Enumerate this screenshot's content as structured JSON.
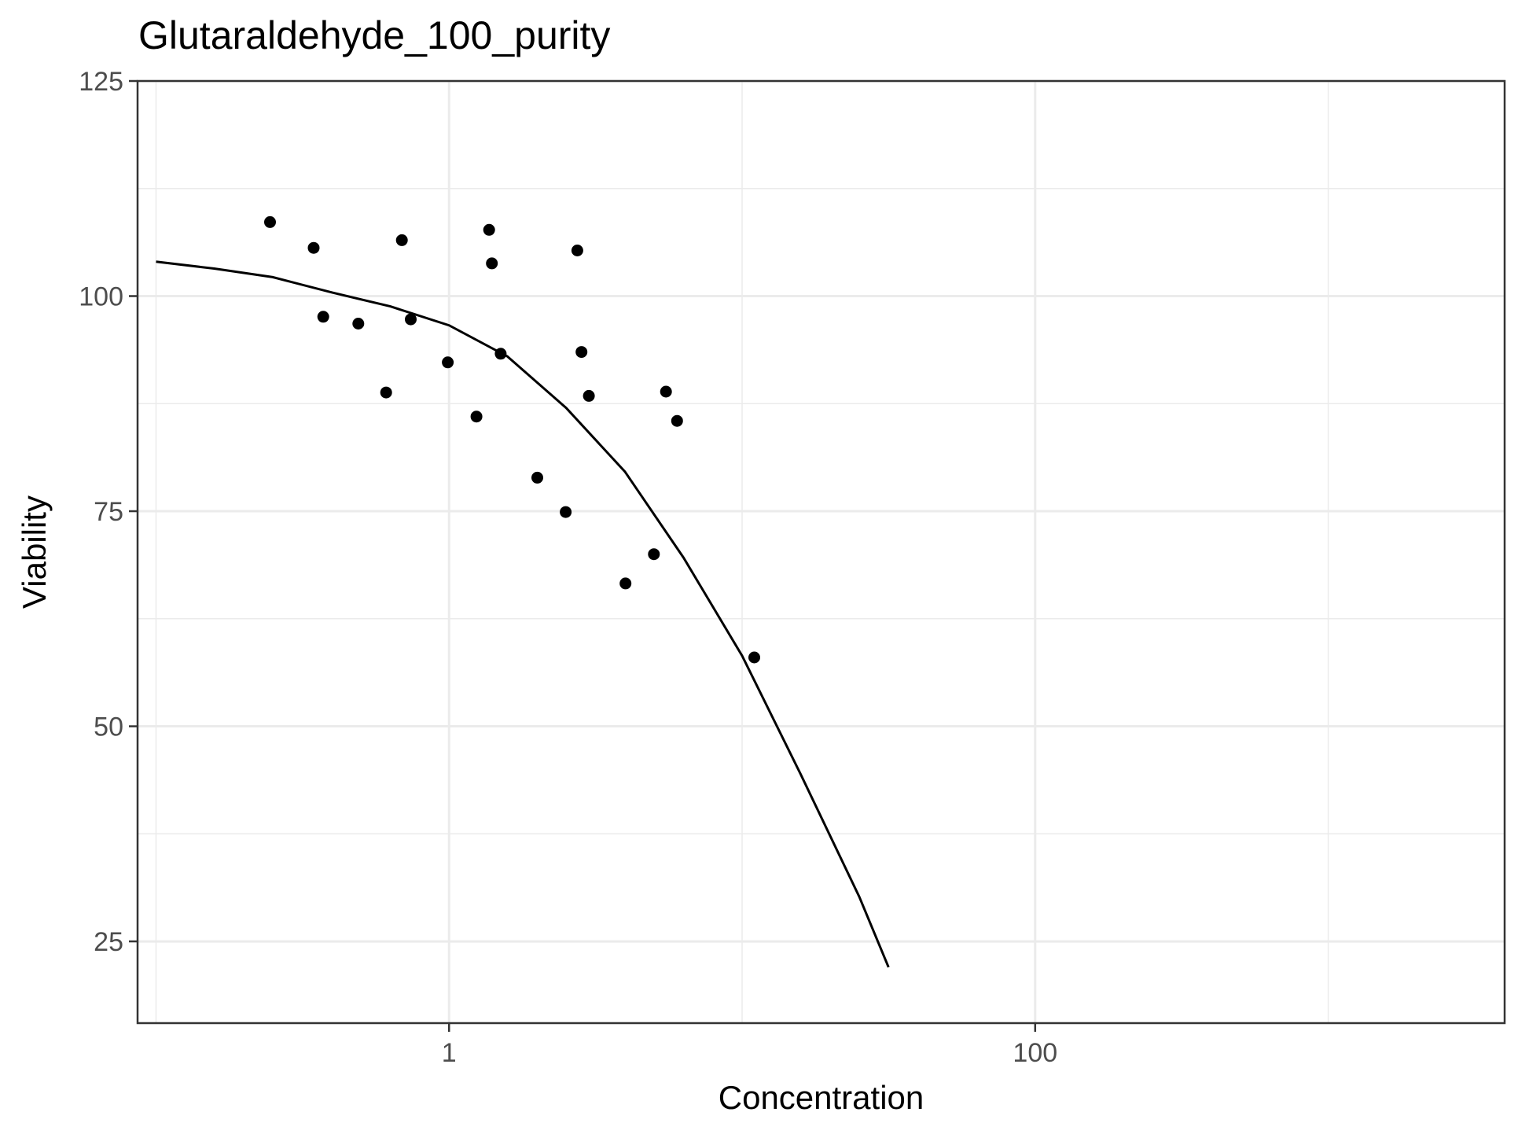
{
  "chart_data": {
    "type": "scatter",
    "title": "Glutaraldehyde_100_purity",
    "xlabel": "Concentration",
    "ylabel": "Viability",
    "x_scale": "log10",
    "xlim": [
      0.0865,
      4000
    ],
    "ylim": [
      15.5,
      125
    ],
    "x_ticks": [
      1,
      100
    ],
    "x_tick_labels": [
      "1",
      "100"
    ],
    "x_minor_ticks": [
      0.1,
      10,
      1000
    ],
    "y_ticks": [
      25,
      50,
      75,
      100,
      125
    ],
    "y_tick_labels": [
      "25",
      "50",
      "75",
      "100",
      "125"
    ],
    "y_minor_ticks": [
      37.5,
      62.5,
      87.5,
      112.5
    ],
    "grid": true,
    "legend": "none",
    "points": [
      {
        "x": 0.245,
        "y": 108.6
      },
      {
        "x": 0.345,
        "y": 105.6
      },
      {
        "x": 0.372,
        "y": 97.6
      },
      {
        "x": 0.49,
        "y": 96.8
      },
      {
        "x": 0.61,
        "y": 88.8
      },
      {
        "x": 0.69,
        "y": 106.5
      },
      {
        "x": 0.74,
        "y": 97.3
      },
      {
        "x": 0.99,
        "y": 92.3
      },
      {
        "x": 1.24,
        "y": 86.0
      },
      {
        "x": 1.37,
        "y": 107.7
      },
      {
        "x": 1.4,
        "y": 103.8
      },
      {
        "x": 1.5,
        "y": 93.3
      },
      {
        "x": 2.0,
        "y": 78.9
      },
      {
        "x": 2.5,
        "y": 74.9
      },
      {
        "x": 2.74,
        "y": 105.3
      },
      {
        "x": 2.83,
        "y": 93.5
      },
      {
        "x": 3.0,
        "y": 88.4
      },
      {
        "x": 4.0,
        "y": 66.6
      },
      {
        "x": 5.0,
        "y": 70.0
      },
      {
        "x": 5.5,
        "y": 88.9
      },
      {
        "x": 6.0,
        "y": 85.5
      },
      {
        "x": 11.0,
        "y": 58.0
      }
    ],
    "fit_curve": {
      "x": [
        0.1,
        0.158,
        0.25,
        0.4,
        0.63,
        1.0,
        1.58,
        2.51,
        3.98,
        6.31,
        10.0,
        15.8,
        25.1,
        31.6
      ],
      "y": [
        104.0,
        103.2,
        102.2,
        100.4,
        98.8,
        96.6,
        93.0,
        87.0,
        79.6,
        69.6,
        58.2,
        44.5,
        30.2,
        22.0
      ]
    }
  }
}
